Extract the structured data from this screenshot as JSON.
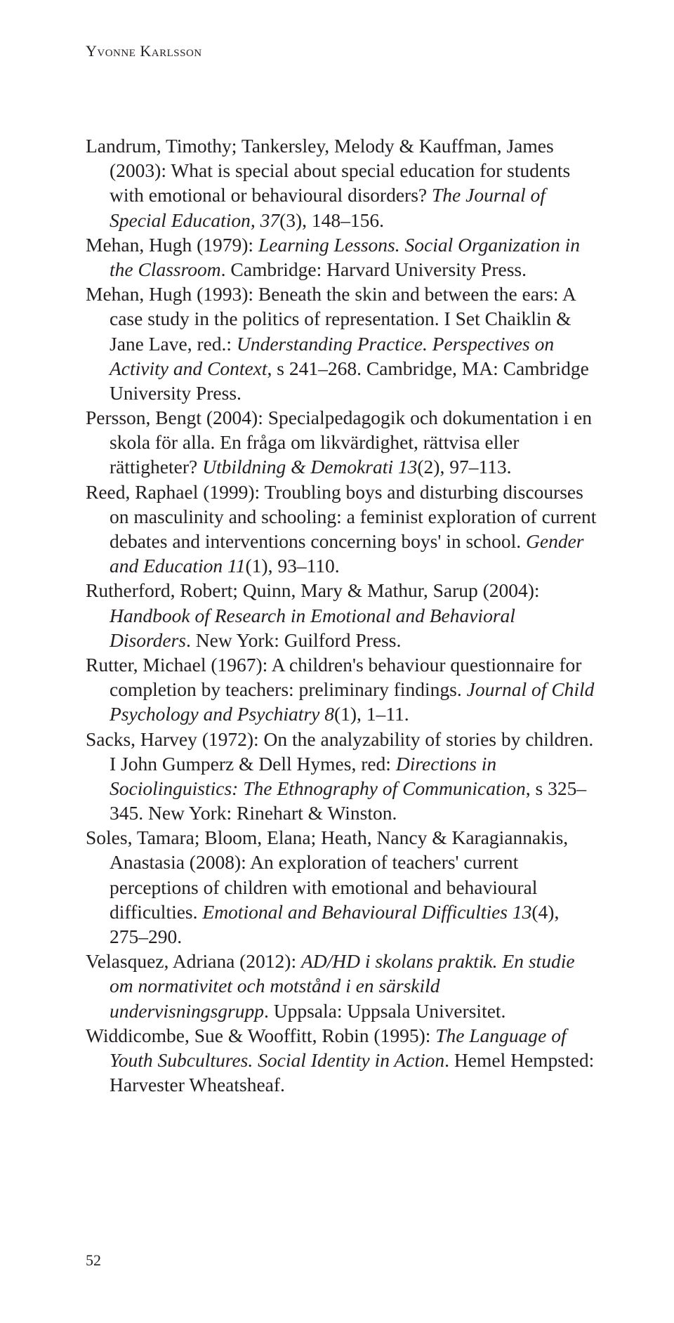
{
  "runningHead": "Yvonne Karlsson",
  "pageNumber": "52",
  "refs": [
    [
      {
        "t": "Landrum, Timothy; Tankersley, Melody & Kauffman, James (2003): What is special about special education for students with emotional or behavioural disorders? "
      },
      {
        "t": "The Journal of Special Education, 37",
        "i": true
      },
      {
        "t": "(3), 148–156."
      }
    ],
    [
      {
        "t": "Mehan, Hugh (1979): "
      },
      {
        "t": "Learning Lessons. Social Organization in the Classroom",
        "i": true
      },
      {
        "t": ". Cambridge: Harvard University Press."
      }
    ],
    [
      {
        "t": "Mehan, Hugh (1993): Beneath the skin and between the ears: A case study in the politics of representation. I Set Chaiklin & Jane Lave, red.: "
      },
      {
        "t": "Understanding Practice. Perspectives on Activity and Context",
        "i": true
      },
      {
        "t": ", s 241–268. Cambridge, MA: Cambridge University Press."
      }
    ],
    [
      {
        "t": "Persson, Bengt (2004): Specialpedagogik och dokumentation i en skola för alla. En fråga om likvärdighet, rättvisa eller rättigheter? "
      },
      {
        "t": "Utbildning & Demokrati 13",
        "i": true
      },
      {
        "t": "(2), 97–113."
      }
    ],
    [
      {
        "t": "Reed, Raphael (1999): Troubling boys and disturbing discourses on masculinity and schooling: a feminist exploration of current debates and interventions concerning boys' in school. "
      },
      {
        "t": "Gender and Education 11",
        "i": true
      },
      {
        "t": "(1), 93–110."
      }
    ],
    [
      {
        "t": "Rutherford, Robert; Quinn, Mary & Mathur, Sarup (2004): "
      },
      {
        "t": "Handbook of Research in Emotional and Behavioral Disorders",
        "i": true
      },
      {
        "t": ". New York: Guilford Press."
      }
    ],
    [
      {
        "t": "Rutter, Michael (1967): A children's behaviour questionnaire for completion by teachers: preliminary findings. "
      },
      {
        "t": "Journal of Child Psychology and Psychiatry 8",
        "i": true
      },
      {
        "t": "(1), 1–11."
      }
    ],
    [
      {
        "t": "Sacks, Harvey (1972): On the analyzability of stories by children. I John Gumperz & Dell Hymes, red: "
      },
      {
        "t": "Directions in Sociolinguistics: The Ethnography of Communication",
        "i": true
      },
      {
        "t": ", s 325–345. New York: Rinehart & Winston."
      }
    ],
    [
      {
        "t": "Soles, Tamara; Bloom, Elana; Heath, Nancy & Karagiannakis, Anastasia (2008): An exploration of teachers' current perceptions of children with emotional and behavioural difficulties. "
      },
      {
        "t": "Emotional and Behavioural Difficulties 13",
        "i": true
      },
      {
        "t": "(4), 275–290."
      }
    ],
    [
      {
        "t": "Velasquez, Adriana (2012): "
      },
      {
        "t": "AD/HD i skolans praktik. En studie om normativitet och motstånd i en särskild undervisningsgrupp",
        "i": true
      },
      {
        "t": ". Uppsala: Uppsala Universitet."
      }
    ],
    [
      {
        "t": "Widdicombe, Sue & Wooffitt, Robin (1995): "
      },
      {
        "t": "The Language of Youth Subcultures. Social Identity in Action",
        "i": true
      },
      {
        "t": ". Hemel Hempsted: Harvester Wheatsheaf."
      }
    ]
  ]
}
